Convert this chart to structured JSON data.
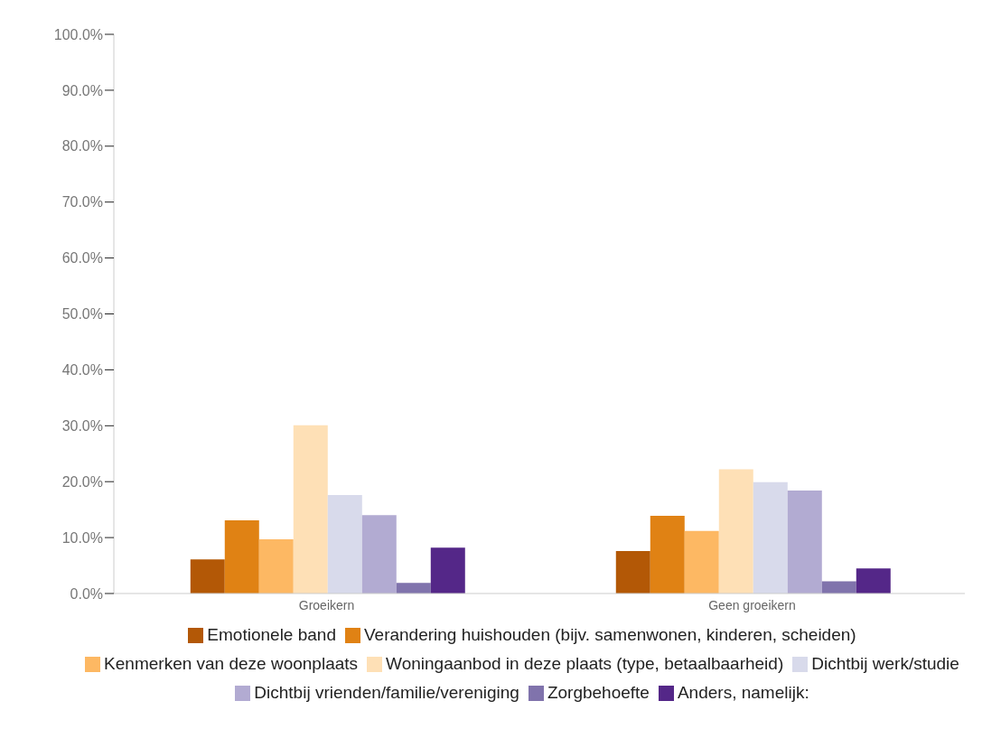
{
  "chart_data": {
    "type": "bar",
    "categories": [
      "Groeikern",
      "Geen groeikern"
    ],
    "series": [
      {
        "name": "Emotionele band",
        "color": "#b35806",
        "values": [
          6.1,
          7.6
        ]
      },
      {
        "name": "Verandering huishouden (bijv. samenwonen, kinderen, scheiden)",
        "color": "#e08214",
        "values": [
          13.1,
          13.9
        ]
      },
      {
        "name": "Kenmerken van deze woonplaats",
        "color": "#fdb863",
        "values": [
          9.7,
          11.2
        ]
      },
      {
        "name": "Woningaanbod in deze plaats (type, betaalbaarheid)",
        "color": "#fee0b6",
        "values": [
          30.1,
          22.2
        ]
      },
      {
        "name": "Dichtbij werk/studie",
        "color": "#d8daeb",
        "values": [
          17.6,
          19.9
        ]
      },
      {
        "name": "Dichtbij vrienden/familie/vereniging",
        "color": "#b2abd2",
        "values": [
          14.0,
          18.4
        ]
      },
      {
        "name": "Zorgbehoefte",
        "color": "#8073ac",
        "values": [
          1.9,
          2.2
        ]
      },
      {
        "name": "Anders, namelijk:",
        "color": "#542788",
        "values": [
          8.2,
          4.5
        ]
      }
    ],
    "ylim": [
      0,
      100
    ],
    "yticks": [
      {
        "value": 0,
        "label": "0.0%"
      },
      {
        "value": 10,
        "label": "10.0%"
      },
      {
        "value": 20,
        "label": "20.0%"
      },
      {
        "value": 30,
        "label": "30.0%"
      },
      {
        "value": 40,
        "label": "40.0%"
      },
      {
        "value": 50,
        "label": "50.0%"
      },
      {
        "value": 60,
        "label": "60.0%"
      },
      {
        "value": 70,
        "label": "70.0%"
      },
      {
        "value": 80,
        "label": "80.0%"
      },
      {
        "value": 90,
        "label": "90.0%"
      },
      {
        "value": 100,
        "label": "100.0%"
      }
    ],
    "grid": false,
    "legend": "bottom"
  }
}
